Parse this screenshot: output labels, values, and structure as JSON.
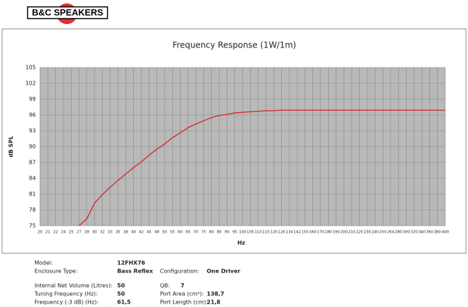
{
  "brand": "B&C SPEAKERS",
  "chart_data": {
    "type": "line",
    "title": "Frequency Response (1W/1m)",
    "x_label": "Hz",
    "y_label": "dB SPL",
    "categories": [
      "20",
      "21",
      "22",
      "24",
      "25",
      "27",
      "28",
      "30",
      "32",
      "33",
      "35",
      "38",
      "40",
      "42",
      "45",
      "48",
      "50",
      "55",
      "60",
      "65",
      "70",
      "75",
      "80",
      "85",
      "90",
      "95",
      "100",
      "105",
      "110",
      "115",
      "120",
      "126",
      "134",
      "142",
      "150",
      "160",
      "170",
      "180",
      "190",
      "200",
      "210",
      "220",
      "230",
      "240",
      "250",
      "264",
      "280",
      "300",
      "320",
      "340",
      "360",
      "380",
      "400"
    ],
    "series": [
      {
        "name": "SPL",
        "color": "#d42020",
        "values": [
          null,
          null,
          null,
          null,
          null,
          75,
          76.3,
          79.3,
          80.9,
          82.3,
          83.6,
          84.8,
          86,
          87.1,
          88.4,
          89.5,
          90.5,
          91.7,
          92.6,
          93.6,
          94.3,
          94.9,
          95.5,
          95.9,
          96.1,
          96.4,
          96.5,
          96.6,
          96.7,
          96.8,
          96.8,
          96.9,
          96.9,
          96.9,
          96.9,
          96.9,
          96.9,
          96.9,
          96.9,
          96.9,
          96.9,
          96.9,
          96.9,
          96.9,
          96.9,
          96.9,
          96.9,
          96.9,
          96.9,
          96.9,
          96.9,
          96.9,
          96.9
        ]
      }
    ],
    "ylim": [
      75,
      105
    ],
    "yticks": [
      75,
      78,
      81,
      84,
      87,
      90,
      93,
      96,
      99,
      102,
      105
    ],
    "grid": true
  },
  "specs": [
    [
      {
        "label": "Model:",
        "value": "12FHX76"
      }
    ],
    [
      {
        "label": "Enclosure Type:",
        "value": "Bass Reflex"
      },
      {
        "label": "Configuration:",
        "value": "One Driver"
      }
    ],
    [
      {
        "label": "Internal Net Volume (Litres):",
        "value": "50"
      },
      {
        "label": "QB:",
        "value": "7"
      }
    ],
    [
      {
        "label": "Tuning Frequency (Hz):",
        "value": "50"
      },
      {
        "label": "Port Area (cm²):",
        "value": "138,7"
      }
    ],
    [
      {
        "label": "Frequency (-3 dB) (Hz):",
        "value": "61,5"
      },
      {
        "label": "Port Length (cm):",
        "value": "21,8"
      }
    ]
  ]
}
